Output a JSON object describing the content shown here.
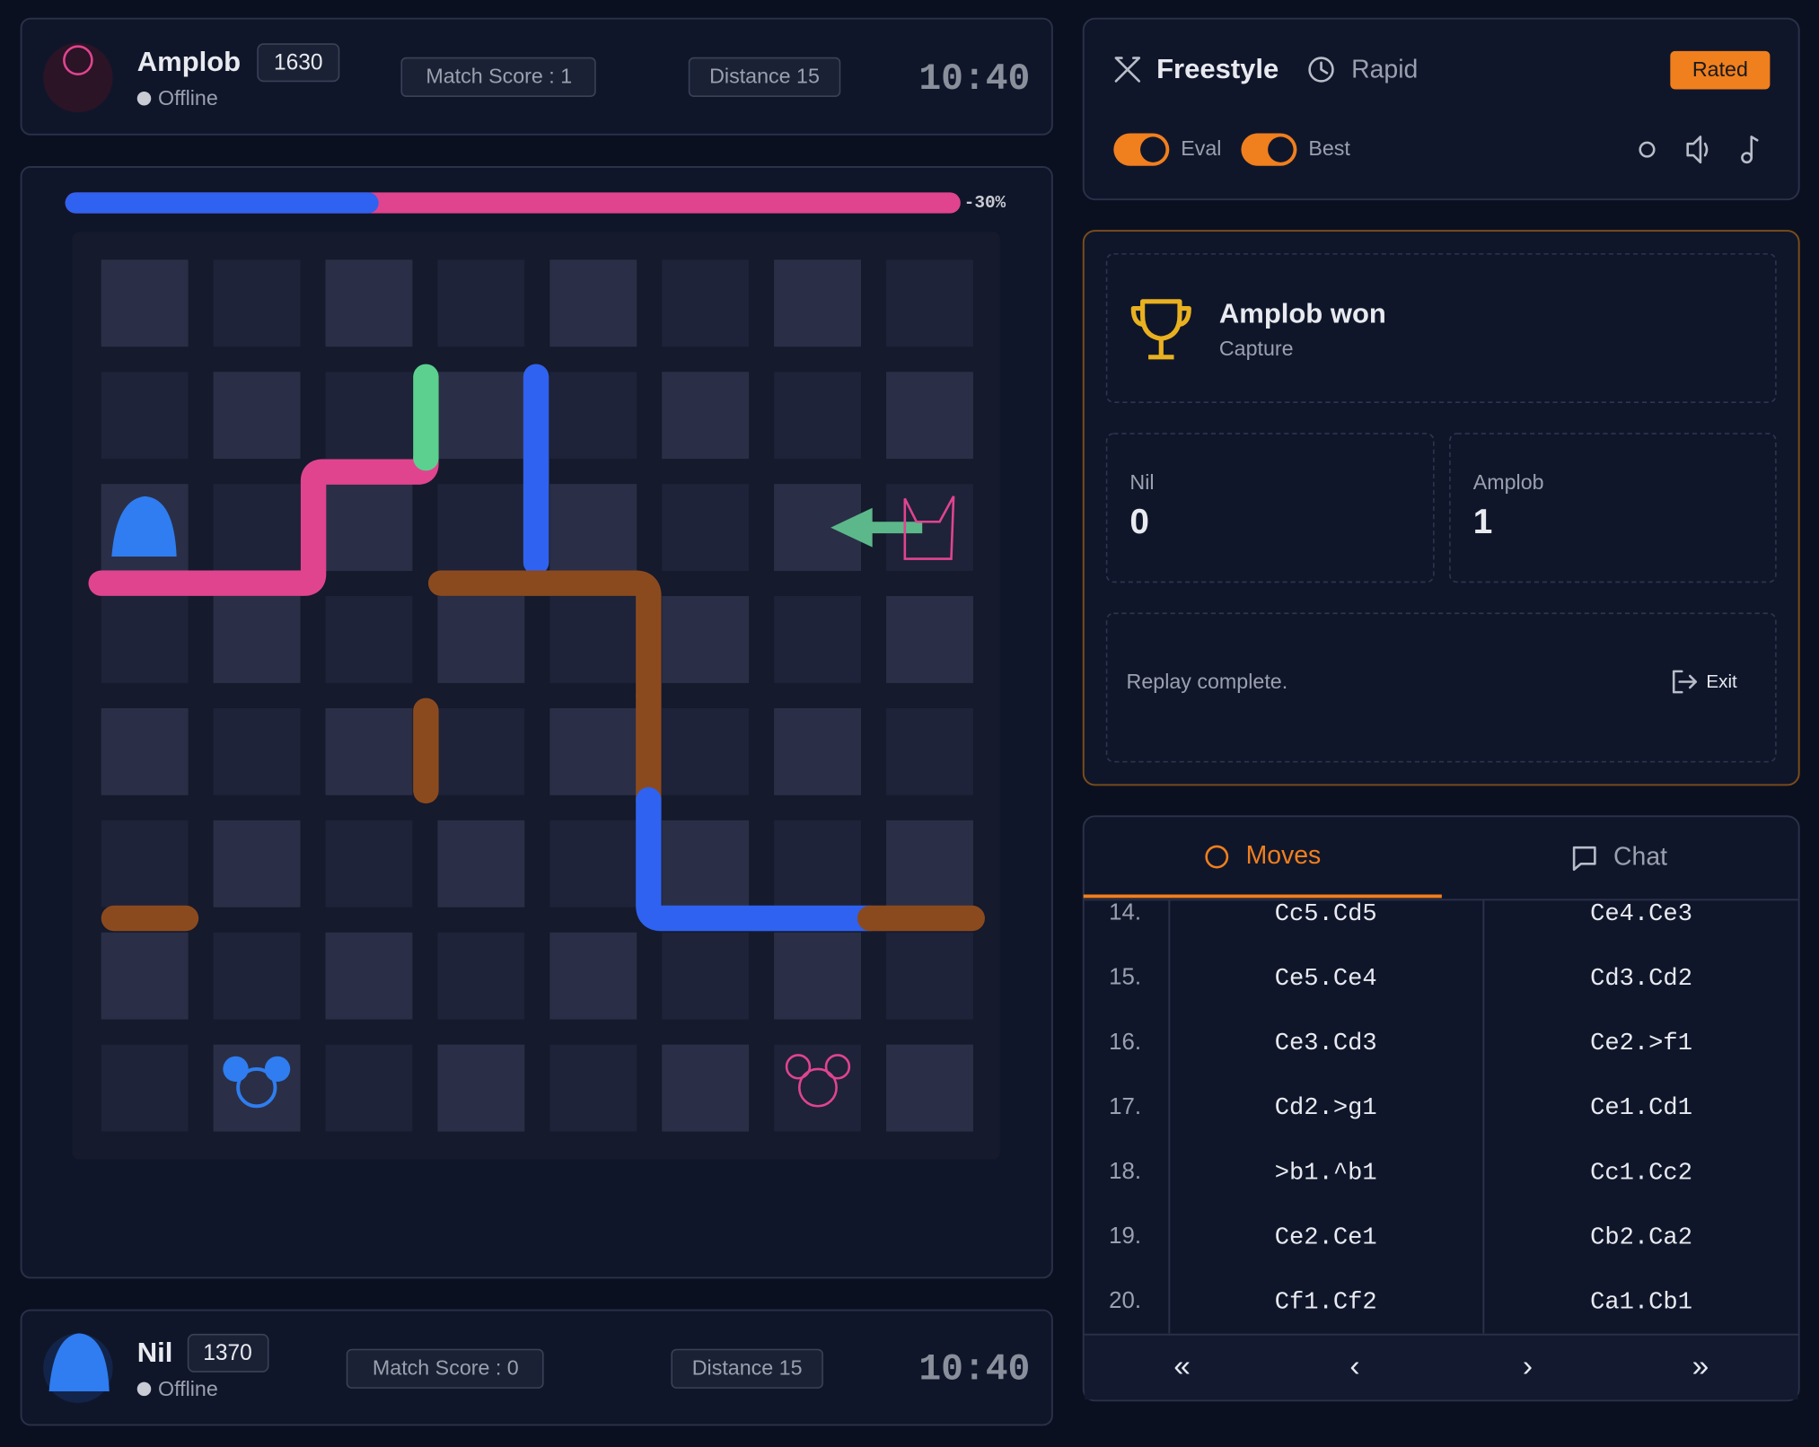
{
  "top_player": {
    "name": "Amplob",
    "rating": "1630",
    "status": "Offline",
    "match_score": "Match Score : 1",
    "distance": "Distance 15",
    "clock": "10:40"
  },
  "bottom_player": {
    "name": "Nil",
    "rating": "1370",
    "status": "Offline",
    "match_score": "Match Score : 0",
    "distance": "Distance 15",
    "clock": "10:40"
  },
  "eval_bar": {
    "value": -30,
    "label": "-30%"
  },
  "mode": {
    "variant": "Freestyle",
    "speed": "Rapid",
    "rated": "Rated",
    "toggles": [
      "Eval",
      "Best"
    ]
  },
  "result": {
    "title": "Amplob won",
    "reason": "Capture",
    "scores": [
      {
        "name": "Nil",
        "value": "0"
      },
      {
        "name": "Amplob",
        "value": "1"
      }
    ],
    "message": "Replay complete.",
    "exit": "Exit"
  },
  "tabs": [
    "Moves",
    "Chat"
  ],
  "moves": [
    {
      "number": "14.",
      "white": "Cc5.Cd5",
      "black": "Ce4.Ce3"
    },
    {
      "number": "15.",
      "white": "Ce5.Ce4",
      "black": "Cd3.Cd2"
    },
    {
      "number": "16.",
      "white": "Ce3.Cd3",
      "black": "Ce2.>f1"
    },
    {
      "number": "17.",
      "white": "Cd2.>g1",
      "black": "Ce1.Cd1"
    },
    {
      "number": "18.",
      "white": ">b1.^b1",
      "black": "Cc1.Cc2"
    },
    {
      "number": "19.",
      "white": "Ce2.Ce1",
      "black": "Cb2.Ca2"
    },
    {
      "number": "20.",
      "white": "Cf1.Cf2",
      "black": "Ca1.Cb1"
    }
  ],
  "nav": [
    "«",
    "‹",
    "›",
    "»"
  ]
}
